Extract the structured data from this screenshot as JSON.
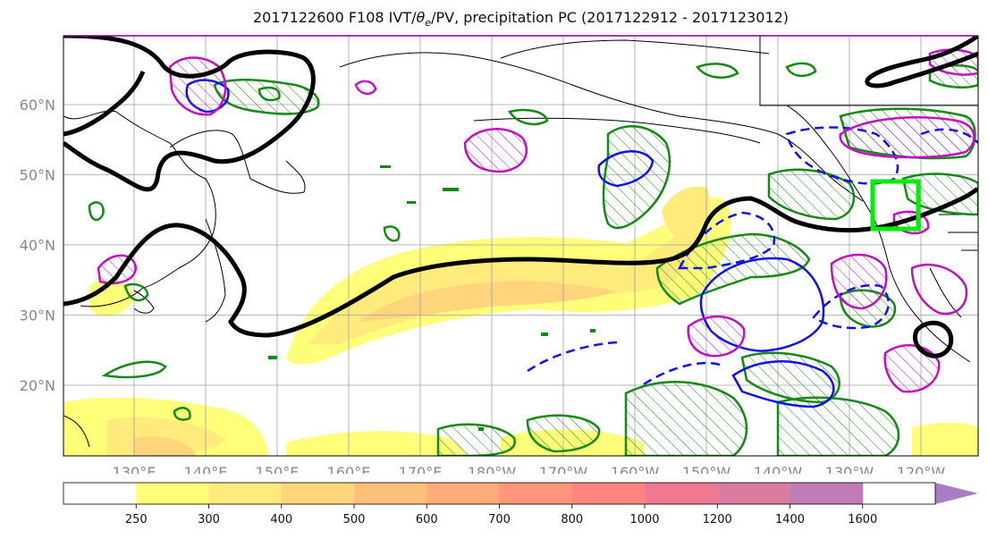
{
  "title": {
    "prefix": "2017122600 F108 IVT/",
    "theta": "θ",
    "theta_sub": "e",
    "suffix": "/PV, precipitation PC (2017122912 - 2017123012)"
  },
  "map": {
    "lon_labels": [
      "130°E",
      "140°E",
      "150°E",
      "160°E",
      "170°E",
      "180°W",
      "170°W",
      "160°W",
      "150°W",
      "140°W",
      "130°W",
      "120°W"
    ],
    "lat_labels": [
      "60°N",
      "50°N",
      "40°N",
      "30°N",
      "20°N"
    ],
    "region_box_color": "#00ee00",
    "contour_colors": {
      "black": "#000000",
      "green": "#148a14",
      "blue": "#1010ee",
      "magenta": "#c010c0"
    }
  },
  "colorbar": {
    "ticks": [
      "250",
      "300",
      "400",
      "500",
      "600",
      "700",
      "800",
      "1000",
      "1200",
      "1400",
      "1600"
    ],
    "colors": [
      "#ffffff",
      "#ffff7a",
      "#ffea7c",
      "#ffd57c",
      "#ffc07c",
      "#ffab7c",
      "#ff967c",
      "#ff8480",
      "#f07890",
      "#dc7ba0",
      "#c07cb6",
      "#aa7cc4"
    ]
  }
}
